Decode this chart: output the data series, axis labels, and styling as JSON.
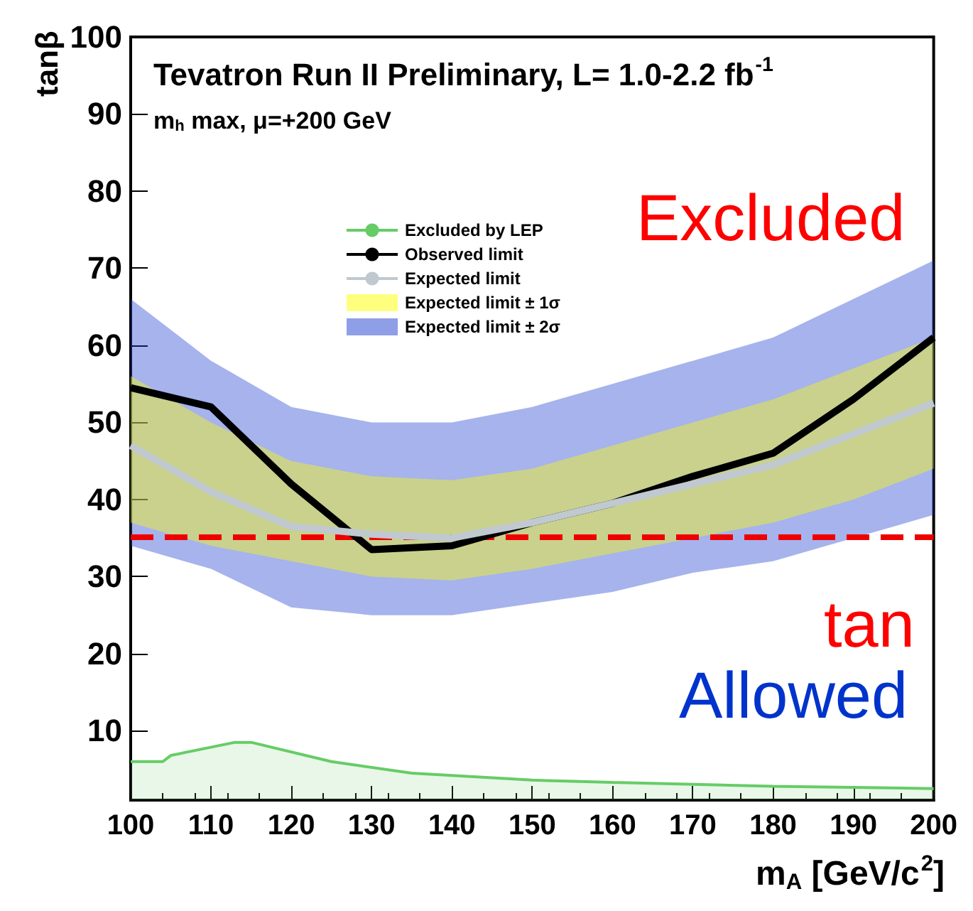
{
  "chart_data": {
    "type": "line",
    "title": "Tevatron Run II Preliminary, L= 1.0-2.2 fb$^{-1}$",
    "subtitle": "m$_{h}$ max, μ=+200 GeV",
    "xlabel": "m$_{A}$ [GeV/c$^{2}$]",
    "ylabel": "tanβ",
    "x": [
      100,
      110,
      120,
      130,
      140,
      150,
      160,
      170,
      180,
      190,
      200
    ],
    "series": [
      {
        "name": "Excluded by LEP",
        "type": "area",
        "color": "#66cc66",
        "x": [
          100,
          104,
          105,
          113,
          115,
          125,
          135,
          150,
          160,
          180,
          200
        ],
        "values": [
          6,
          6,
          6.8,
          8.5,
          8.5,
          6,
          4.5,
          3.6,
          3.3,
          2.8,
          2.5
        ]
      },
      {
        "name": "Observed limit",
        "type": "line",
        "color": "#000000",
        "values": [
          54.5,
          52,
          42,
          33.5,
          34,
          37,
          39.5,
          43,
          46,
          53,
          61
        ]
      },
      {
        "name": "Expected limit",
        "type": "line",
        "color": "#c0c8d0",
        "values": [
          47,
          41,
          36.5,
          35.5,
          35,
          37,
          39.5,
          42,
          44.5,
          48.5,
          52.5
        ]
      },
      {
        "name": "Expected limit ± 1σ",
        "type": "area",
        "color": "#ffff00",
        "values": [
          null,
          null,
          null,
          null,
          null,
          null,
          null,
          null,
          null,
          null,
          null
        ],
        "lower": [
          37,
          34,
          32,
          30,
          29.5,
          31,
          33,
          35,
          37,
          40,
          44
        ],
        "upper": [
          56,
          50,
          45,
          43,
          42.5,
          44,
          47,
          50,
          53,
          57,
          61
        ]
      },
      {
        "name": "Expected limit ± 2σ",
        "type": "area",
        "color": "#2040d0",
        "values": [
          null,
          null,
          null,
          null,
          null,
          null,
          null,
          null,
          null,
          null,
          null
        ],
        "lower": [
          34,
          31,
          26,
          25,
          25,
          26.5,
          28,
          30.5,
          32,
          35,
          38
        ],
        "upper": [
          66,
          58,
          52,
          50,
          50,
          52,
          55,
          58,
          61,
          66,
          71
        ]
      }
    ],
    "xlim": [
      100,
      200
    ],
    "xticks": [
      100,
      110,
      120,
      130,
      140,
      150,
      160,
      170,
      180,
      190,
      200
    ],
    "ylim": [
      1,
      100
    ],
    "yticks": [
      10,
      20,
      30,
      40,
      50,
      60,
      70,
      80,
      90,
      100
    ],
    "ref_lines": [
      {
        "axis": "y",
        "value": 35.2,
        "color": "#ee0000",
        "line_style": "dashed"
      }
    ],
    "annotations": [
      "Excluded",
      "tan",
      "Allowed"
    ],
    "legend": "top",
    "grid": false,
    "marker": "none"
  }
}
